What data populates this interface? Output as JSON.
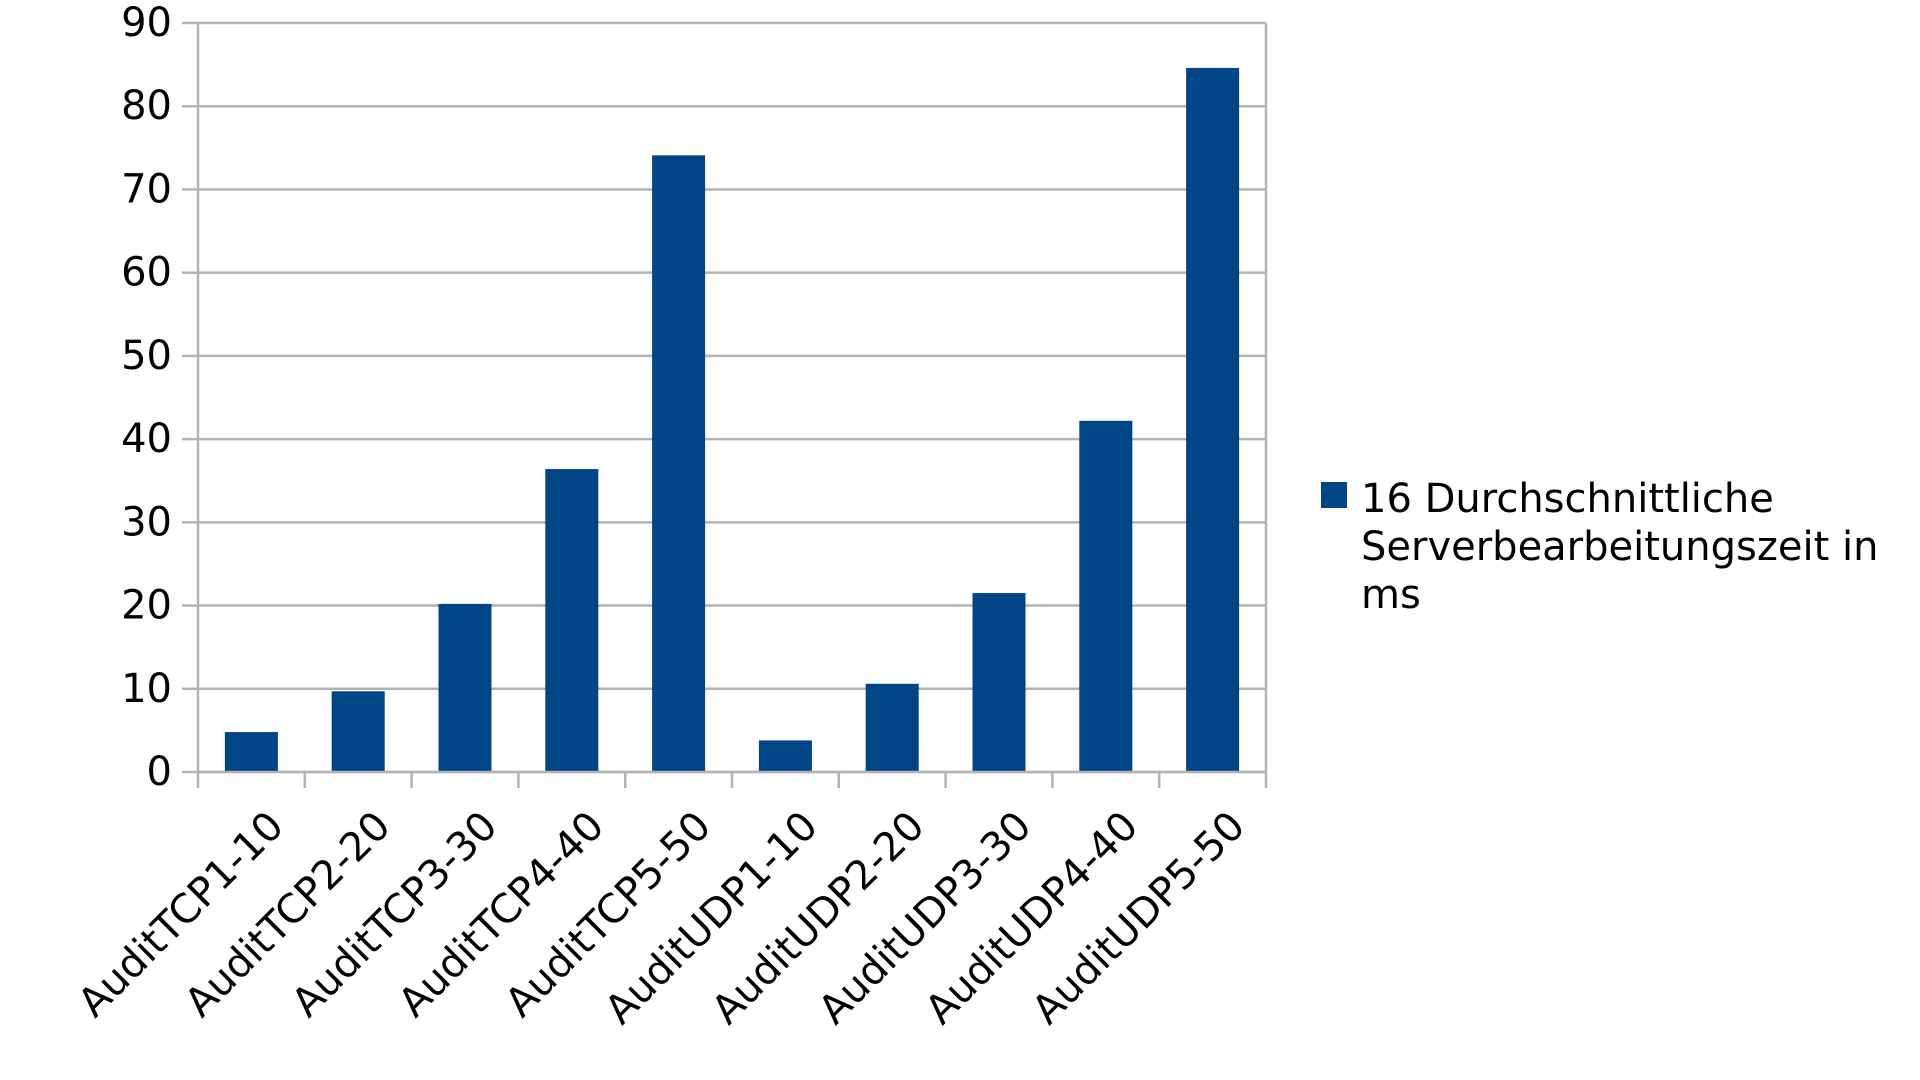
{
  "chart_data": {
    "type": "bar",
    "categories": [
      "AuditTCP1-10",
      "AuditTCP2-20",
      "AuditTCP3-30",
      "AuditTCP4-40",
      "AuditTCP5-50",
      "AuditUDP1-10",
      "AuditUDP2-20",
      "AuditUDP3-30",
      "AuditUDP4-40",
      "AuditUDP5-50"
    ],
    "series": [
      {
        "name": "16 Durchschnittliche Serverbearbeitungszeit in ms",
        "values": [
          4.8,
          9.7,
          20.2,
          36.4,
          74.1,
          3.8,
          10.6,
          21.5,
          42.2,
          84.6
        ],
        "color": "#004586"
      }
    ],
    "ylim": [
      0,
      90
    ],
    "yticks": [
      "0",
      "10",
      "20",
      "30",
      "40",
      "50",
      "60",
      "70",
      "80",
      "90"
    ],
    "grid": true,
    "legend_position": "right",
    "title": "",
    "xlabel": "",
    "ylabel": ""
  },
  "colors": {
    "bar": "#004586",
    "grid": "#b3b3b3",
    "axis": "#b3b3b3"
  }
}
